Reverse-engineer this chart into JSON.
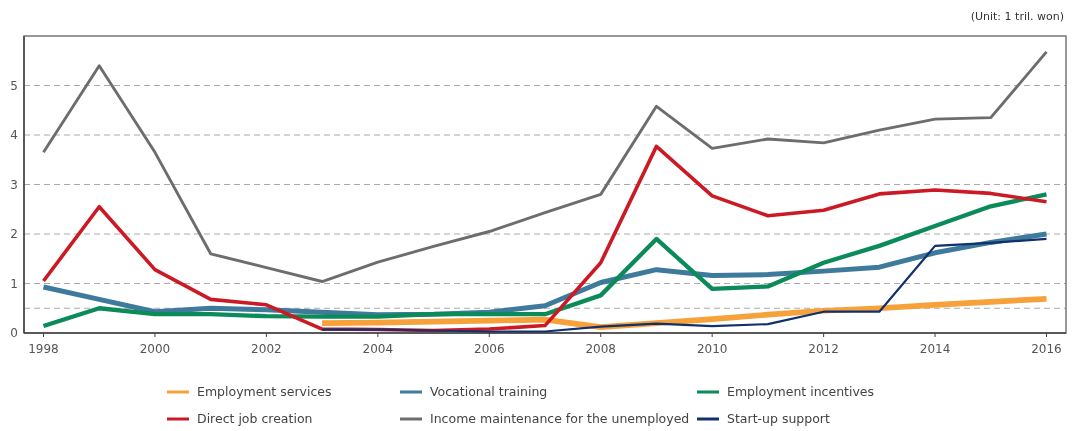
{
  "chart_data": {
    "type": "line",
    "annotations": [
      "(Unit: 1 tril. won)"
    ],
    "x": [
      1998,
      1999,
      2000,
      2001,
      2002,
      2003,
      2004,
      2005,
      2006,
      2007,
      2008,
      2009,
      2010,
      2011,
      2012,
      2013,
      2014,
      2015,
      2016
    ],
    "xlim": [
      1997.65,
      2016.35
    ],
    "xticks": [
      1998,
      2000,
      2002,
      2004,
      2006,
      2008,
      2010,
      2012,
      2014,
      2016
    ],
    "ylim": [
      0,
      6
    ],
    "yticks": [
      0,
      {
        "value": 0.5,
        "label": null
      },
      1,
      2,
      3,
      4,
      5
    ],
    "grid": "y",
    "legend": "bottom",
    "marker": "none",
    "line_style": "solid",
    "series": [
      {
        "name": "Employment services",
        "color": "#f7a13b",
        "values": [
          null,
          null,
          null,
          null,
          null,
          0.2,
          0.21,
          0.23,
          0.25,
          0.27,
          0.12,
          0.2,
          0.28,
          0.37,
          0.45,
          0.5,
          0.57,
          0.63,
          0.69
        ]
      },
      {
        "name": "Vocational training",
        "color": "#3d7a9b",
        "values": [
          0.93,
          0.68,
          0.43,
          0.5,
          0.47,
          0.42,
          0.37,
          0.38,
          0.42,
          0.55,
          1.02,
          1.28,
          1.16,
          1.18,
          1.25,
          1.33,
          1.62,
          1.83,
          2.0
        ]
      },
      {
        "name": "Employment incentives",
        "color": "#0b8a5a",
        "values": [
          0.14,
          0.5,
          0.38,
          0.38,
          0.34,
          0.33,
          0.33,
          0.38,
          0.38,
          0.38,
          0.76,
          1.9,
          0.89,
          0.94,
          1.42,
          1.76,
          2.16,
          2.56,
          2.8
        ]
      },
      {
        "name": "Direct job creation",
        "color": "#cc1a24",
        "values": [
          1.05,
          2.55,
          1.28,
          0.68,
          0.57,
          0.08,
          0.07,
          0.05,
          0.08,
          0.15,
          1.42,
          3.77,
          2.77,
          2.37,
          2.48,
          2.81,
          2.89,
          2.82,
          2.65
        ]
      },
      {
        "name": "Income maintenance for the unemployed",
        "color": "#6d6d6f",
        "values": [
          3.65,
          5.4,
          3.65,
          1.6,
          1.32,
          1.04,
          1.43,
          1.75,
          2.05,
          2.43,
          2.8,
          4.58,
          3.73,
          3.92,
          3.84,
          4.1,
          4.32,
          4.35,
          5.68
        ]
      },
      {
        "name": "Start-up support",
        "color": "#10306e",
        "values": [
          null,
          null,
          null,
          null,
          null,
          0.07,
          0.07,
          0.05,
          0.03,
          0.03,
          0.13,
          0.19,
          0.14,
          0.18,
          0.43,
          0.43,
          1.76,
          1.82,
          1.9
        ]
      }
    ]
  }
}
